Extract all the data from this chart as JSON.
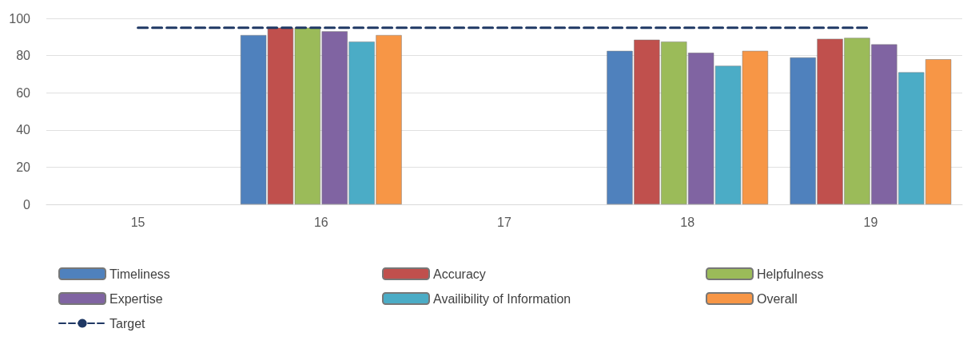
{
  "chart_data": {
    "type": "bar",
    "categories": [
      "15",
      "16",
      "17",
      "18",
      "19"
    ],
    "series": [
      {
        "name": "Timeliness",
        "color": "#4f81bd",
        "values": [
          null,
          91,
          null,
          82.5,
          79
        ]
      },
      {
        "name": "Accuracy",
        "color": "#c0504d",
        "values": [
          null,
          95,
          null,
          88.5,
          89
        ]
      },
      {
        "name": "Helpfulness",
        "color": "#9bbb59",
        "values": [
          null,
          95,
          null,
          87.5,
          89.5
        ]
      },
      {
        "name": "Expertise",
        "color": "#8064a2",
        "values": [
          null,
          93,
          null,
          81.5,
          86
        ]
      },
      {
        "name": "Availibility of Information",
        "color": "#4bacc6",
        "values": [
          null,
          87.5,
          null,
          74.5,
          71
        ]
      },
      {
        "name": "Overall",
        "color": "#f79646",
        "values": [
          null,
          91,
          null,
          82.5,
          78
        ]
      },
      {
        "name": "Target",
        "type": "line",
        "color": "#1f3864",
        "line_style": "dashed",
        "marker": "none",
        "values": [
          95,
          95,
          95,
          95,
          95
        ]
      }
    ],
    "ylim": [
      0,
      100
    ],
    "yticks": [
      0,
      20,
      40,
      60,
      80,
      100
    ],
    "grid": "y",
    "legend": "bottom"
  }
}
